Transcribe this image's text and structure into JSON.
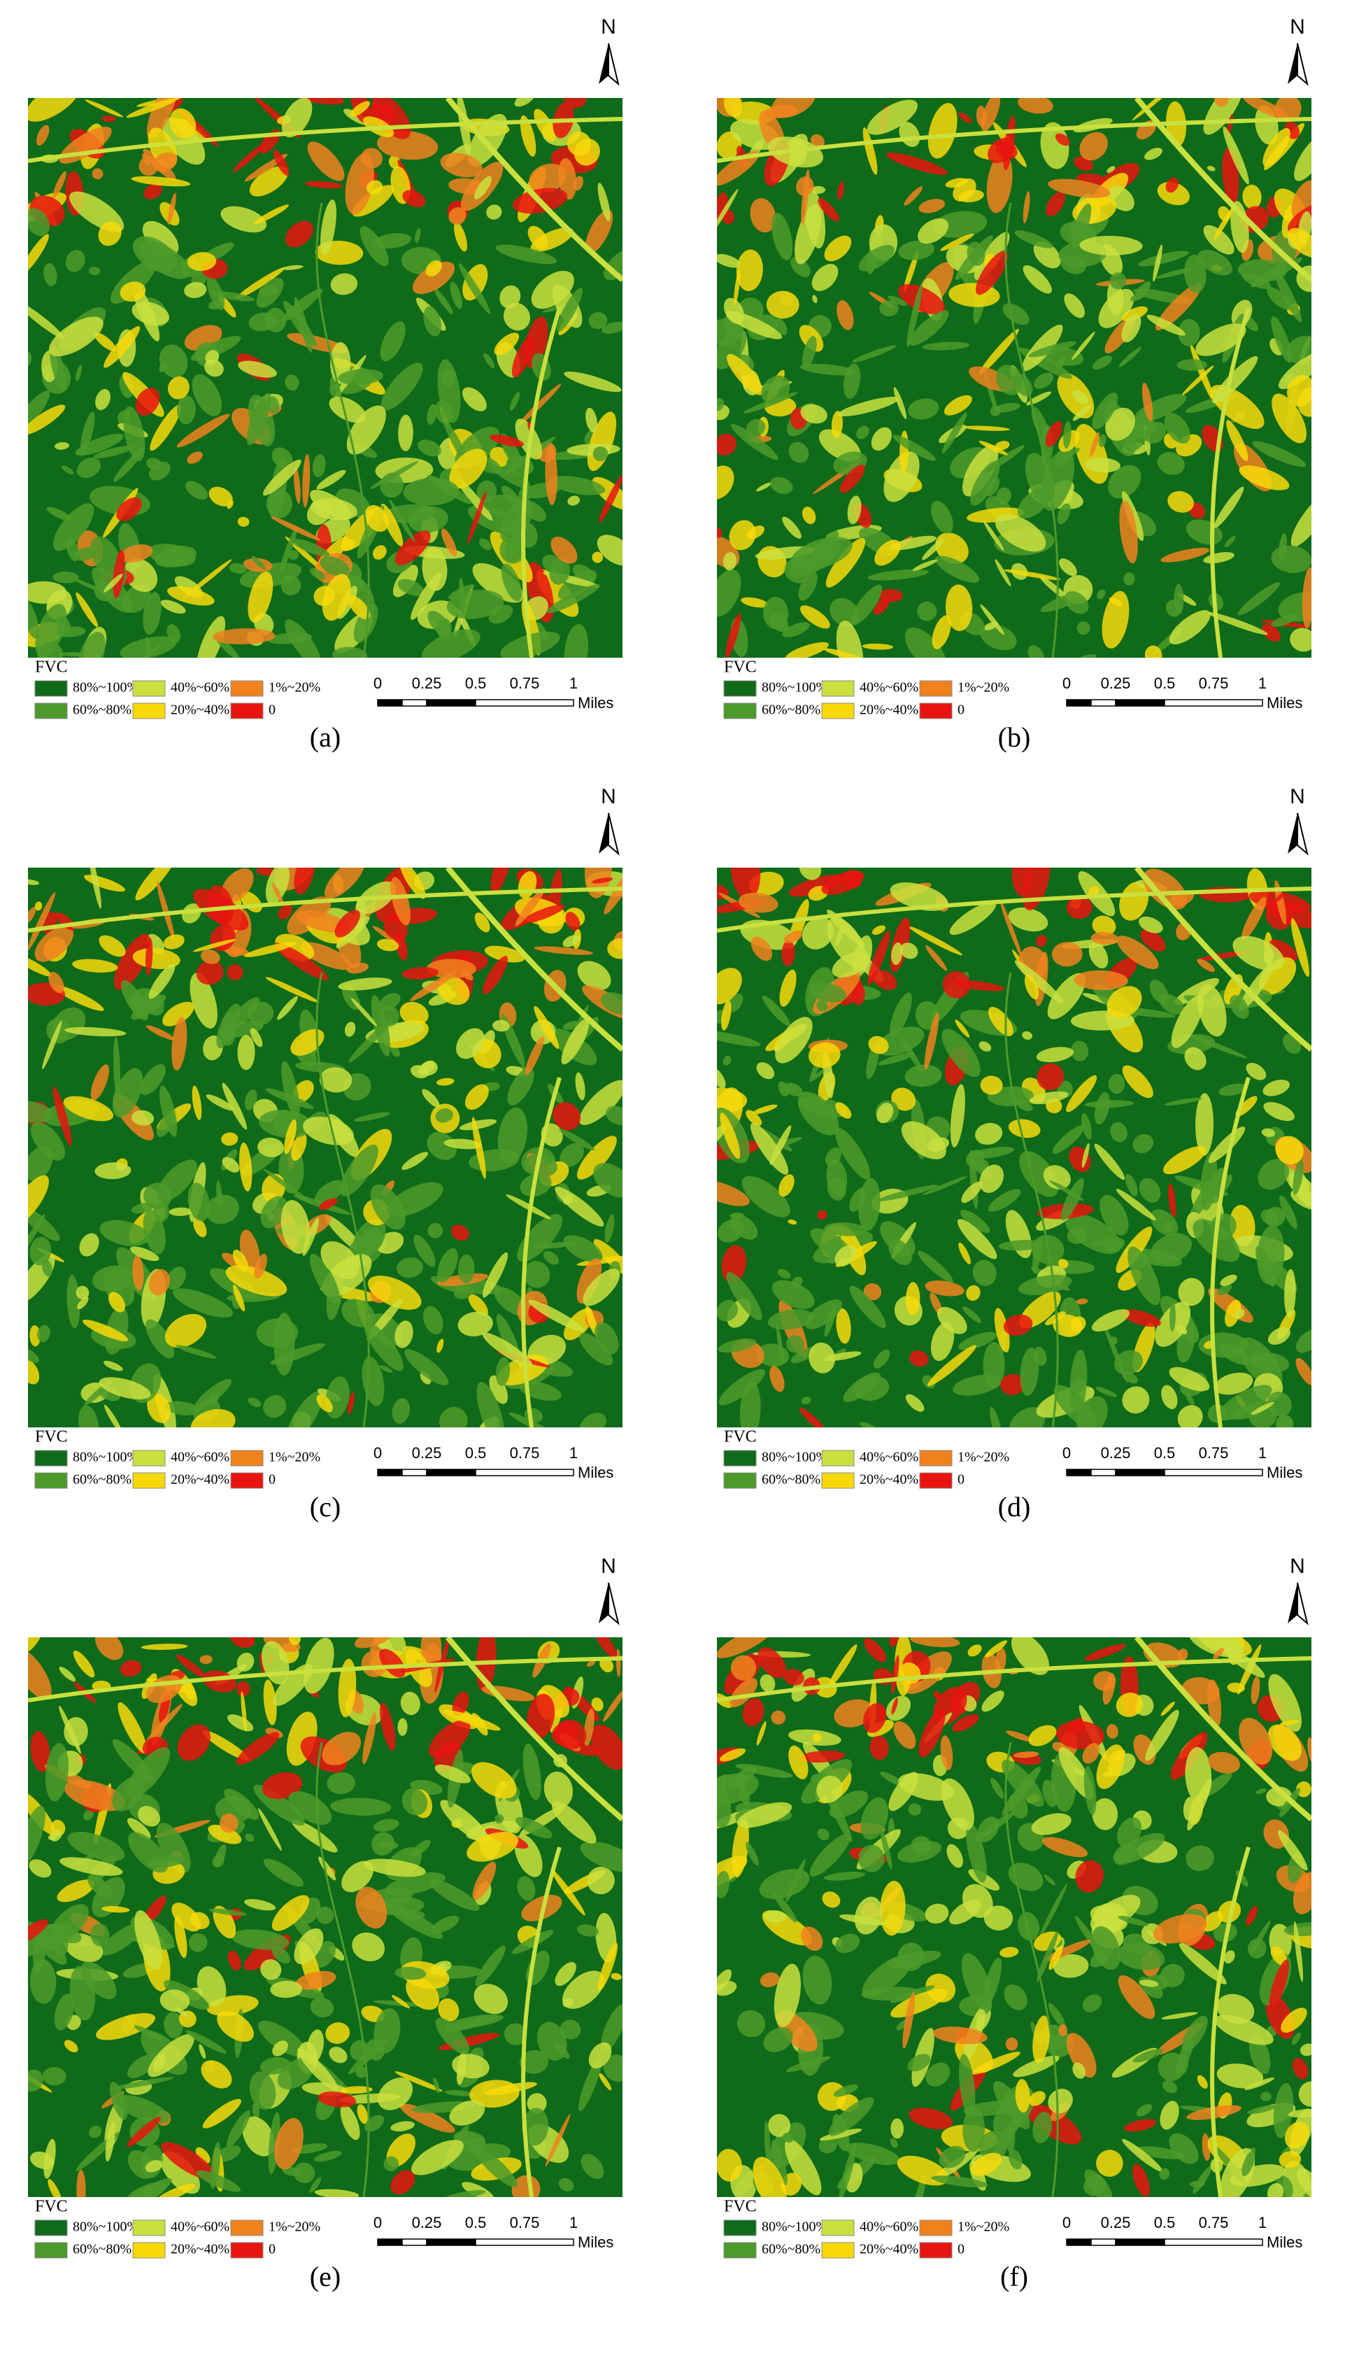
{
  "panels": [
    {
      "label": "(a)",
      "north": "N",
      "legend": {
        "title": "FVC",
        "items": [
          {
            "label": "80%~100%",
            "color": "#0f6a1a"
          },
          {
            "label": "60%~80%",
            "color": "#4c9a2a"
          },
          {
            "label": "40%~60%",
            "color": "#c9e03e"
          },
          {
            "label": "20%~40%",
            "color": "#f7d90a"
          },
          {
            "label": "1%~20%",
            "color": "#f0821e"
          },
          {
            "label": "0",
            "color": "#e8140f"
          }
        ]
      },
      "scale": {
        "ticks": [
          "0",
          "0.25",
          "0.5",
          "0.75",
          "1"
        ],
        "unit": "Miles"
      }
    },
    {
      "label": "(b)",
      "north": "N",
      "legend": {
        "title": "FVC",
        "items": [
          {
            "label": "80%~100%",
            "color": "#0f6a1a"
          },
          {
            "label": "60%~80%",
            "color": "#4c9a2a"
          },
          {
            "label": "40%~60%",
            "color": "#c9e03e"
          },
          {
            "label": "20%~40%",
            "color": "#f7d90a"
          },
          {
            "label": "1%~20%",
            "color": "#f0821e"
          },
          {
            "label": "0",
            "color": "#e8140f"
          }
        ]
      },
      "scale": {
        "ticks": [
          "0",
          "0.25",
          "0.5",
          "0.75",
          "1"
        ],
        "unit": "Miles"
      }
    },
    {
      "label": "(c)",
      "north": "N",
      "legend": {
        "title": "FVC",
        "items": [
          {
            "label": "80%~100%",
            "color": "#0f6a1a"
          },
          {
            "label": "60%~80%",
            "color": "#4c9a2a"
          },
          {
            "label": "40%~60%",
            "color": "#c9e03e"
          },
          {
            "label": "20%~40%",
            "color": "#f7d90a"
          },
          {
            "label": "1%~20%",
            "color": "#f0821e"
          },
          {
            "label": "0",
            "color": "#e8140f"
          }
        ]
      },
      "scale": {
        "ticks": [
          "0",
          "0.25",
          "0.5",
          "0.75",
          "1"
        ],
        "unit": "Miles"
      }
    },
    {
      "label": "(d)",
      "north": "N",
      "legend": {
        "title": "FVC",
        "items": [
          {
            "label": "80%~100%",
            "color": "#0f6a1a"
          },
          {
            "label": "60%~80%",
            "color": "#4c9a2a"
          },
          {
            "label": "40%~60%",
            "color": "#c9e03e"
          },
          {
            "label": "20%~40%",
            "color": "#f7d90a"
          },
          {
            "label": "1%~20%",
            "color": "#f0821e"
          },
          {
            "label": "0",
            "color": "#e8140f"
          }
        ]
      },
      "scale": {
        "ticks": [
          "0",
          "0.25",
          "0.5",
          "0.75",
          "1"
        ],
        "unit": "Miles"
      }
    },
    {
      "label": "(e)",
      "north": "N",
      "legend": {
        "title": "FVC",
        "items": [
          {
            "label": "80%~100%",
            "color": "#0f6a1a"
          },
          {
            "label": "60%~80%",
            "color": "#4c9a2a"
          },
          {
            "label": "40%~60%",
            "color": "#c9e03e"
          },
          {
            "label": "20%~40%",
            "color": "#f7d90a"
          },
          {
            "label": "1%~20%",
            "color": "#f0821e"
          },
          {
            "label": "0",
            "color": "#e8140f"
          }
        ]
      },
      "scale": {
        "ticks": [
          "0",
          "0.25",
          "0.5",
          "0.75",
          "1"
        ],
        "unit": "Miles"
      }
    },
    {
      "label": "(f)",
      "north": "N",
      "legend": {
        "title": "FVC",
        "items": [
          {
            "label": "80%~100%",
            "color": "#0f6a1a"
          },
          {
            "label": "60%~80%",
            "color": "#4c9a2a"
          },
          {
            "label": "40%~60%",
            "color": "#c9e03e"
          },
          {
            "label": "20%~40%",
            "color": "#f7d90a"
          },
          {
            "label": "1%~20%",
            "color": "#f0821e"
          },
          {
            "label": "0",
            "color": "#e8140f"
          }
        ]
      },
      "scale": {
        "ticks": [
          "0",
          "0.25",
          "0.5",
          "0.75",
          "1"
        ],
        "unit": "Miles"
      }
    }
  ]
}
